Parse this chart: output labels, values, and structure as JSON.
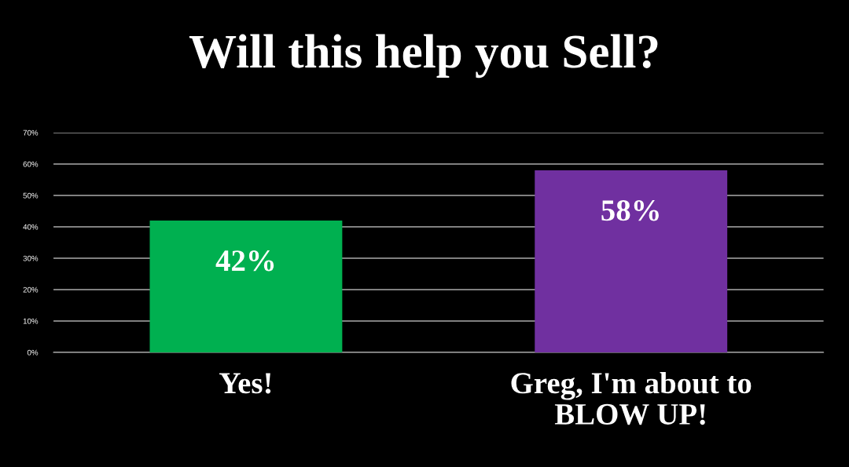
{
  "chart_data": {
    "type": "bar",
    "title": "Will this help you Sell?",
    "categories": [
      "Yes!",
      "Greg, I'm about to\nBLOW UP!"
    ],
    "values": [
      42,
      58
    ],
    "colors": [
      "#00b050",
      "#7030a0"
    ],
    "value_labels": [
      "42%",
      "58%"
    ],
    "ylim": [
      0,
      70
    ],
    "yticks": [
      {
        "value": 0,
        "label": "0%"
      },
      {
        "value": 10,
        "label": "10%"
      },
      {
        "value": 20,
        "label": "20%"
      },
      {
        "value": 30,
        "label": "30%"
      },
      {
        "value": 40,
        "label": "40%"
      },
      {
        "value": 50,
        "label": "50%"
      },
      {
        "value": 60,
        "label": "60%"
      },
      {
        "value": 70,
        "label": "70%"
      }
    ],
    "grid": "y",
    "legend": false
  }
}
